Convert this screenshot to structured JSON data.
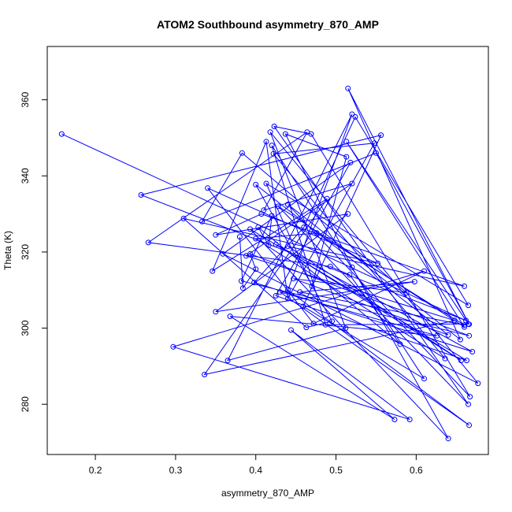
{
  "chart_data": {
    "type": "scatter",
    "title": "ATOM2 Southbound asymmetry_870_AMP",
    "xlabel": "asymmetry_870_AMP",
    "ylabel": "Theta (K)",
    "xlim": [
      0.14,
      0.69
    ],
    "ylim": [
      266.8,
      374.0
    ],
    "xticks": [
      "0.2",
      "0.3",
      "0.4",
      "0.5",
      "0.6"
    ],
    "yticks": [
      "280",
      "300",
      "320",
      "340",
      "360"
    ],
    "grid": false,
    "color": "#0000ff",
    "series": [
      {
        "mode": "line+points",
        "x": [
          0.158,
          0.662,
          0.257,
          0.556,
          0.459,
          0.61,
          0.42,
          0.487,
          0.665,
          0.513,
          0.66,
          0.428,
          0.665,
          0.423,
          0.469,
          0.667,
          0.44,
          0.655,
          0.515,
          0.666,
          0.55,
          0.333,
          0.383,
          0.588,
          0.447,
          0.64,
          0.4,
          0.495,
          0.463,
          0.31,
          0.552,
          0.34,
          0.472,
          0.61,
          0.297,
          0.592,
          0.444,
          0.573,
          0.368,
          0.626,
          0.43,
          0.666,
          0.44,
          0.52,
          0.365,
          0.512,
          0.418,
          0.677,
          0.359,
          0.518,
          0.425,
          0.663,
          0.393,
          0.64,
          0.52,
          0.437,
          0.513,
          0.47,
          0.413,
          0.665,
          0.524,
          0.46,
          0.398,
          0.67,
          0.425,
          0.656,
          0.44,
          0.66,
          0.407,
          0.35,
          0.515,
          0.35,
          0.598,
          0.455,
          0.66,
          0.476,
          0.4,
          0.636,
          0.422,
          0.548,
          0.44,
          0.413,
          0.346,
          0.489,
          0.336,
          0.648,
          0.388,
          0.52,
          0.41,
          0.464,
          0.266,
          0.493,
          0.517,
          0.58,
          0.403,
          0.416,
          0.42,
          0.382,
          0.666,
          0.393,
          0.4,
          0.384,
          0.38
        ],
        "y": [
          351.0,
          302.0,
          335.0,
          350.7,
          305.7,
          286.7,
          348.0,
          300.9,
          301.1,
          349.0,
          300.3,
          332.0,
          280.0,
          353.0,
          351.0,
          282.0,
          332.5,
          297.0,
          363.0,
          301.0,
          346.0,
          328.0,
          346.0,
          309.3,
          313.0,
          298.2,
          337.7,
          301.8,
          300.2,
          328.8,
          317.0,
          336.8,
          301.2,
          315.0,
          295.1,
          276.0,
          299.5,
          276.0,
          303.1,
          298.0,
          309.5,
          274.5,
          310.0,
          356.2,
          291.5,
          300.0,
          351.5,
          285.5,
          319.5,
          343.5,
          308.5,
          291.5,
          326.0,
          271.0,
          316.0,
          351.0,
          345.0,
          311.0,
          338.0,
          306.0,
          355.5,
          326.5,
          312.0,
          293.8,
          322.0,
          291.5,
          321.5,
          311.0,
          330.0,
          324.5,
          330.0,
          304.3,
          312.2,
          309.5,
          300.8,
          325.0,
          323.5,
          292.0,
          345.8,
          348.6,
          307.8,
          349.0,
          315.0,
          334.0,
          287.8,
          302.0,
          319.0,
          338.0,
          331.0,
          351.5,
          322.5,
          316.2,
          314.0,
          295.8,
          326.5,
          321.8,
          329.5,
          312.4,
          298.0,
          319.5,
          315.5,
          310.5,
          324.0
        ]
      }
    ]
  }
}
